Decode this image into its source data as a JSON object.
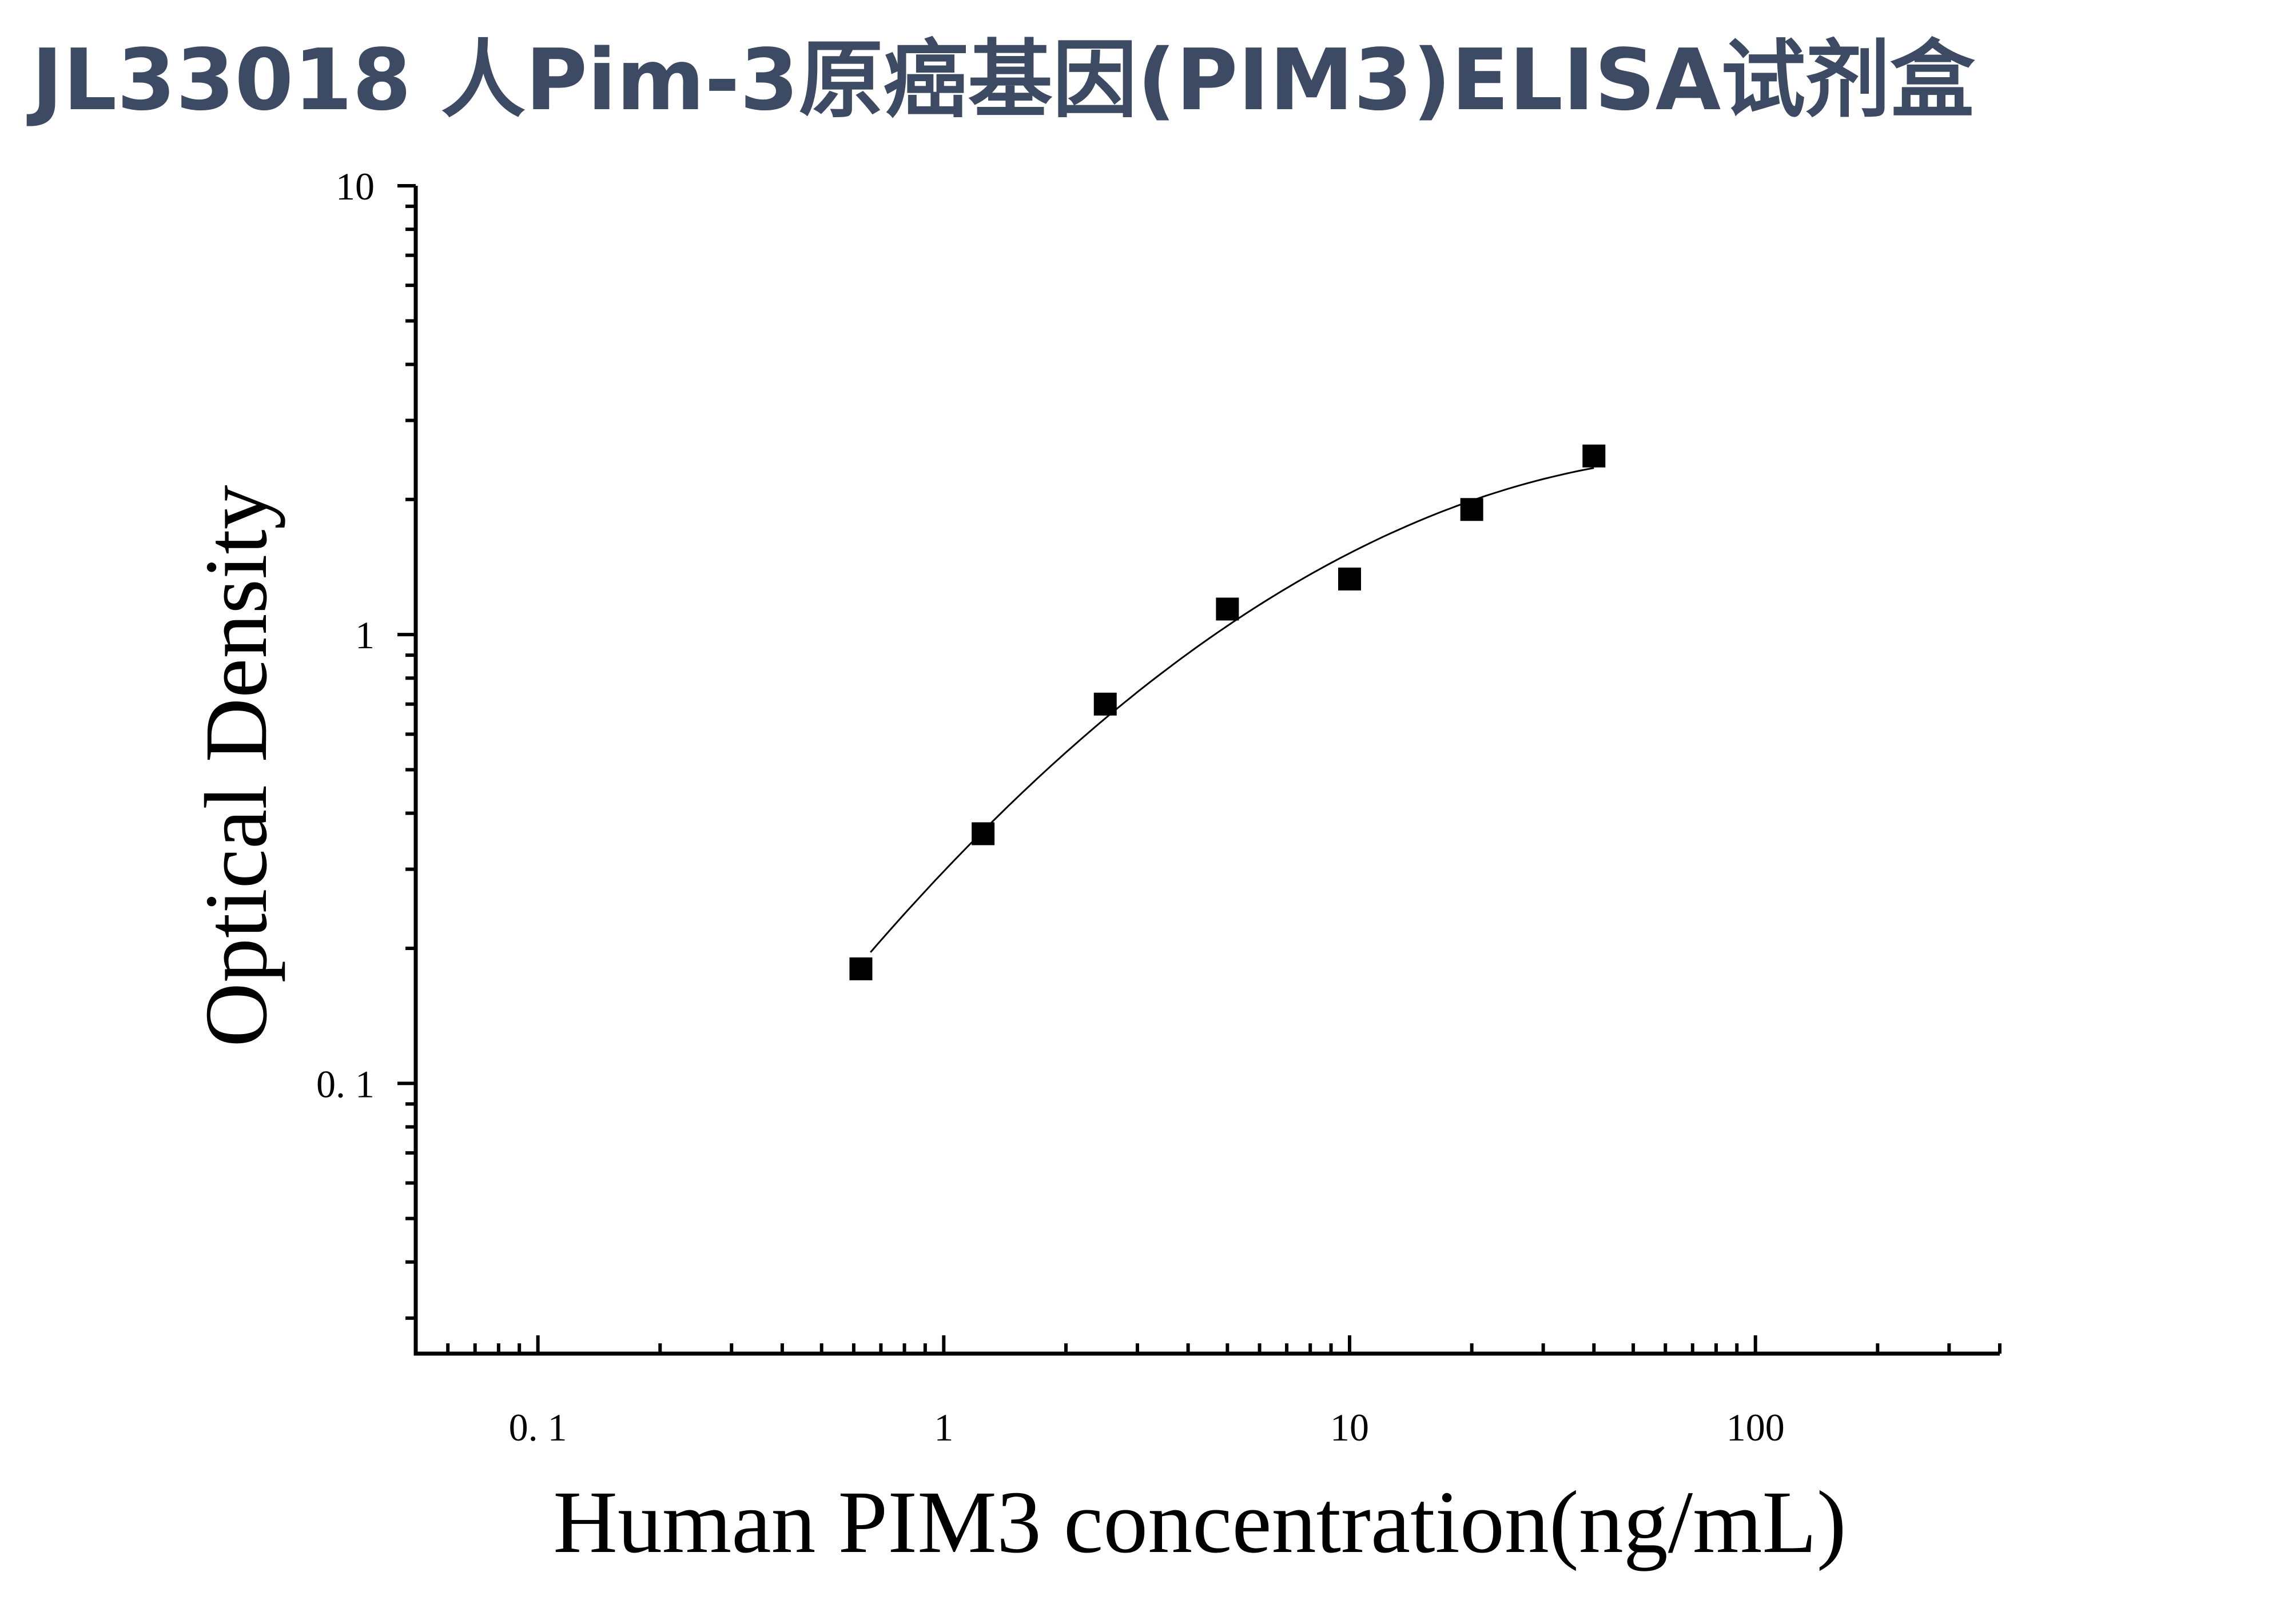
{
  "title": "JL33018 人Pim-3原癌基因(PIM3)ELISA试剂盒",
  "chart_data": {
    "type": "scatter",
    "xlabel": "Human PIM3 concentration(ng/mL)",
    "ylabel": "Optical Density",
    "xscale": "log",
    "yscale": "log",
    "xlim": [
      0.05,
      400
    ],
    "ylim": [
      0.025,
      10
    ],
    "x_ticks": [
      {
        "value": 0.1,
        "label": "0. 1"
      },
      {
        "value": 1,
        "label": "1"
      },
      {
        "value": 10,
        "label": "10"
      },
      {
        "value": 100,
        "label": "100"
      }
    ],
    "y_ticks": [
      {
        "value": 0.1,
        "label": "0. 1"
      },
      {
        "value": 1,
        "label": "1"
      },
      {
        "value": 10,
        "label": "10"
      }
    ],
    "series": [
      {
        "marker": "square",
        "color": "#000000",
        "x": [
          0.625,
          1.25,
          2.5,
          5,
          10,
          20,
          40
        ],
        "y": [
          0.18,
          0.36,
          0.7,
          1.14,
          1.33,
          1.9,
          2.5
        ]
      }
    ],
    "fit_curve": {
      "color": "#000000",
      "x_range": [
        0.66,
        40
      ]
    },
    "grid": false,
    "legend": "none"
  }
}
